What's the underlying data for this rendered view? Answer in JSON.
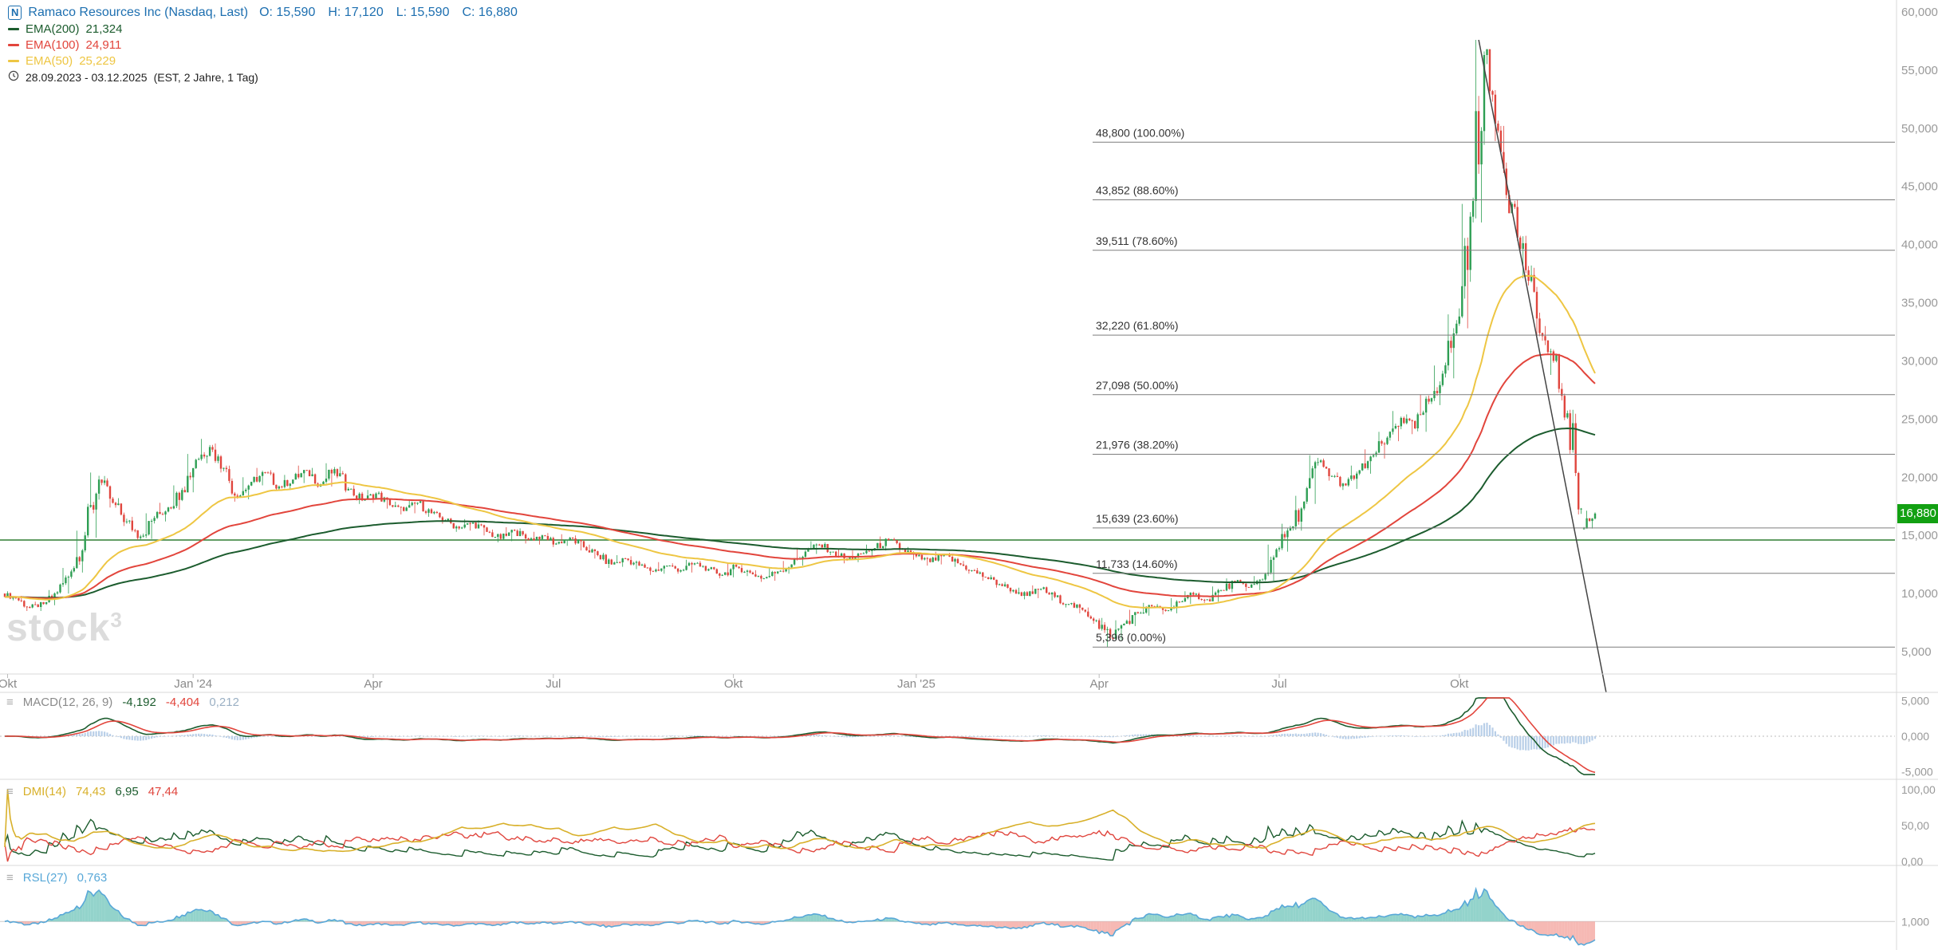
{
  "header": {
    "instrument_icon": "N",
    "instrument": "Ramaco Resources Inc (Nasdaq, Last)",
    "ohlc": {
      "open": "O: 15,590",
      "high": "H: 17,120",
      "low": "L: 15,590",
      "close": "C: 16,880"
    },
    "emas": [
      {
        "period": 200,
        "name": "EMA(200)",
        "value": "21,324",
        "color": "#1c5c2e"
      },
      {
        "period": 100,
        "name": "EMA(100)",
        "value": "24,911",
        "color": "#e2453c"
      },
      {
        "period": 50,
        "name": "EMA(50)",
        "value": "25,229",
        "color": "#eec643"
      }
    ],
    "date_range": "28.09.2023 - 03.12.2025",
    "range_note": "(EST, 2 Jahre, 1 Tag)"
  },
  "watermark": {
    "text": "stock",
    "sup": "3"
  },
  "colors": {
    "up": "#2e9e53",
    "down": "#e0463e",
    "ema200": "#1c5c2e",
    "ema100": "#e2453c",
    "ema50": "#eec643",
    "macd_line": "#1c5c2e",
    "macd_signal": "#e2453c",
    "macd_hist": "#b9cfe8",
    "macd_hist_text": "#9bb0c4",
    "adx": "#d8b02a",
    "plus_di": "#1c5c2e",
    "minus_di": "#e0463e",
    "rsl_line": "#58a8d8",
    "rsl_above": "#6fc4ba",
    "rsl_below": "#f3a19b",
    "badge": "#12a012",
    "support": "#2e7d32",
    "fib": "#7d7d7d",
    "trend": "#444444",
    "instrument": "#1d6fb0",
    "axis_text": "#999999"
  },
  "indicators": {
    "macd": {
      "name": "MACD(12, 26, 9)",
      "macd_value": "-4,192",
      "signal_value": "-4,404",
      "hist_value": "0,212"
    },
    "dmi": {
      "name": "DMI(14)",
      "adx_value": "74,43",
      "plus_di_value": "6,95",
      "minus_di_value": "47,44"
    },
    "rsl": {
      "name": "RSL(27)",
      "value": "0,763"
    }
  },
  "chart_data": {
    "type": "candlestick",
    "title": "Ramaco Resources Inc (Nasdaq, Last)",
    "date_range": "28.09.2023 - 03.12.2025",
    "sampling": "weekly OHLC estimated from the daily chart, axis units = price x 1000",
    "last": {
      "open": 15590,
      "high": 17120,
      "low": 15590,
      "close": 16880
    },
    "last_price": {
      "value": 16880,
      "label": "16,880"
    },
    "price_axis": {
      "min": 5000,
      "max": 60000,
      "ticks": [
        {
          "v": 60000,
          "label": "60,000"
        },
        {
          "v": 55000,
          "label": "55,000"
        },
        {
          "v": 50000,
          "label": "50,000"
        },
        {
          "v": 45000,
          "label": "45,000"
        },
        {
          "v": 40000,
          "label": "40,000"
        },
        {
          "v": 35000,
          "label": "35,000"
        },
        {
          "v": 30000,
          "label": "30,000"
        },
        {
          "v": 25000,
          "label": "25,000"
        },
        {
          "v": 20000,
          "label": "20,000"
        },
        {
          "v": 15000,
          "label": "15,000"
        },
        {
          "v": 10000,
          "label": "10,000"
        },
        {
          "v": 5000,
          "label": "5,000"
        }
      ]
    },
    "x_axis": [
      {
        "label": "Okt",
        "day": 1
      },
      {
        "label": "Jan '24",
        "day": 68
      },
      {
        "label": "Apr",
        "day": 133
      },
      {
        "label": "Jul",
        "day": 198
      },
      {
        "label": "Okt",
        "day": 263
      },
      {
        "label": "Jan '25",
        "day": 329
      },
      {
        "label": "Apr",
        "day": 395
      },
      {
        "label": "Jul",
        "day": 460
      },
      {
        "label": "Okt",
        "day": 525
      }
    ],
    "fib_levels": [
      {
        "value": 48800,
        "label": "48,800 (100.00%)"
      },
      {
        "value": 43852,
        "label": "43,852 (88.60%)"
      },
      {
        "value": 39511,
        "label": "39,511 (78.60%)"
      },
      {
        "value": 32220,
        "label": "32,220 (61.80%)"
      },
      {
        "value": 27098,
        "label": "27,098 (50.00%)"
      },
      {
        "value": 21976,
        "label": "21,976 (38.20%)"
      },
      {
        "value": 15639,
        "label": "15,639 (23.60%)"
      },
      {
        "value": 11733,
        "label": "11,733 (14.60%)"
      },
      {
        "value": 5396,
        "label": "5,396 (0.00%)"
      }
    ],
    "support_line": {
      "value": 14600
    },
    "trendline": {
      "from_day": 532,
      "from_value": 57600,
      "to_day": 578,
      "to_value": 1500
    },
    "emas": [
      {
        "period": 200,
        "value": 21324
      },
      {
        "period": 100,
        "value": 24911
      },
      {
        "period": 50,
        "value": 25229
      }
    ],
    "indicator_axes": {
      "macd": {
        "range": [
          -5500,
          5500
        ],
        "ticks": [
          {
            "v": 5000,
            "label": "5,000"
          },
          {
            "v": 0,
            "label": "0,000"
          },
          {
            "v": -5000,
            "label": "-5,000"
          }
        ]
      },
      "dmi": {
        "range": [
          0,
          102
        ],
        "ticks": [
          {
            "v": 100,
            "label": "100,00"
          },
          {
            "v": 50,
            "label": "50,00"
          },
          {
            "v": 0,
            "label": "0,00"
          }
        ]
      },
      "rsl": {
        "range": [
          0.5,
          2.0
        ],
        "ticks": [
          {
            "v": 1,
            "label": "1,000"
          }
        ]
      }
    },
    "weekly_ohlc": [
      [
        10000,
        10200,
        9400,
        9600
      ],
      [
        9600,
        9800,
        8500,
        8800
      ],
      [
        8800,
        9300,
        8500,
        9100
      ],
      [
        9100,
        10300,
        9000,
        10100
      ],
      [
        10100,
        12200,
        10000,
        11900
      ],
      [
        11900,
        15400,
        11800,
        15000
      ],
      [
        15000,
        20400,
        14800,
        19800
      ],
      [
        19800,
        20100,
        17400,
        17800
      ],
      [
        17800,
        18200,
        15800,
        16200
      ],
      [
        16200,
        16600,
        14600,
        14900
      ],
      [
        14900,
        16900,
        14700,
        16500
      ],
      [
        16500,
        17800,
        16200,
        17400
      ],
      [
        17400,
        19300,
        17200,
        18900
      ],
      [
        18900,
        22000,
        18700,
        21500
      ],
      [
        21500,
        23300,
        21200,
        22600
      ],
      [
        22600,
        22900,
        20400,
        20800
      ],
      [
        20800,
        21000,
        17900,
        18300
      ],
      [
        18300,
        20000,
        18100,
        19600
      ],
      [
        19600,
        20800,
        19300,
        20400
      ],
      [
        20400,
        20600,
        18900,
        19200
      ],
      [
        19200,
        20200,
        18900,
        19800
      ],
      [
        19800,
        21000,
        19500,
        20600
      ],
      [
        20600,
        20800,
        19100,
        19400
      ],
      [
        19400,
        21200,
        19200,
        20700
      ],
      [
        20700,
        20900,
        18700,
        19000
      ],
      [
        19000,
        19300,
        17700,
        18000
      ],
      [
        18000,
        18900,
        17800,
        18600
      ],
      [
        18600,
        18800,
        17300,
        17600
      ],
      [
        17600,
        17900,
        16800,
        17100
      ],
      [
        17100,
        18100,
        16900,
        17800
      ],
      [
        17800,
        18000,
        16600,
        16900
      ],
      [
        16900,
        17100,
        16000,
        16300
      ],
      [
        16300,
        16500,
        15300,
        15600
      ],
      [
        15600,
        16400,
        15400,
        16100
      ],
      [
        16100,
        16300,
        15000,
        15300
      ],
      [
        15300,
        15500,
        14400,
        14700
      ],
      [
        14700,
        15700,
        14500,
        15400
      ],
      [
        15400,
        15600,
        14300,
        14600
      ],
      [
        14600,
        15300,
        14200,
        15000
      ],
      [
        15000,
        15200,
        14000,
        14300
      ],
      [
        14300,
        15100,
        14100,
        14800
      ],
      [
        14800,
        15000,
        13700,
        14000
      ],
      [
        14000,
        14200,
        13000,
        13300
      ],
      [
        13300,
        13500,
        12200,
        12500
      ],
      [
        12500,
        13300,
        12300,
        13000
      ],
      [
        13000,
        13200,
        12100,
        12400
      ],
      [
        12400,
        12600,
        11600,
        11900
      ],
      [
        11900,
        12700,
        11700,
        12400
      ],
      [
        12400,
        12600,
        11700,
        12000
      ],
      [
        12000,
        12900,
        11800,
        12600
      ],
      [
        12600,
        12800,
        11900,
        12100
      ],
      [
        12100,
        12300,
        11300,
        11600
      ],
      [
        11600,
        12600,
        11400,
        12300
      ],
      [
        12300,
        12500,
        11500,
        11800
      ],
      [
        11800,
        12000,
        11000,
        11300
      ],
      [
        11300,
        12200,
        11100,
        11900
      ],
      [
        11900,
        12800,
        11700,
        12500
      ],
      [
        12500,
        13900,
        12400,
        13600
      ],
      [
        13600,
        14500,
        13400,
        14200
      ],
      [
        14200,
        14400,
        13300,
        13600
      ],
      [
        13600,
        13800,
        12600,
        12900
      ],
      [
        12900,
        13700,
        12700,
        13400
      ],
      [
        13400,
        14200,
        13200,
        13900
      ],
      [
        13900,
        14900,
        13700,
        14600
      ],
      [
        14600,
        14800,
        13500,
        13800
      ],
      [
        13800,
        14000,
        12900,
        13200
      ],
      [
        13200,
        13400,
        12400,
        12700
      ],
      [
        12700,
        13600,
        12500,
        13300
      ],
      [
        13300,
        13500,
        12300,
        12600
      ],
      [
        12600,
        12800,
        11700,
        12000
      ],
      [
        12000,
        12200,
        11100,
        11400
      ],
      [
        11400,
        11600,
        10500,
        10800
      ],
      [
        10800,
        11000,
        10000,
        10300
      ],
      [
        10300,
        10500,
        9500,
        9800
      ],
      [
        9800,
        10700,
        9600,
        10400
      ],
      [
        10400,
        10600,
        9400,
        9700
      ],
      [
        9700,
        9900,
        8800,
        9100
      ],
      [
        9100,
        9300,
        8300,
        8600
      ],
      [
        8600,
        8800,
        7400,
        7700
      ],
      [
        7700,
        7900,
        5396,
        6200
      ],
      [
        6200,
        7700,
        6000,
        7400
      ],
      [
        7400,
        8600,
        7200,
        8300
      ],
      [
        8300,
        9200,
        8100,
        8900
      ],
      [
        8900,
        9100,
        8200,
        8500
      ],
      [
        8500,
        9600,
        8300,
        9300
      ],
      [
        9300,
        10200,
        9100,
        9900
      ],
      [
        9900,
        10100,
        9200,
        9500
      ],
      [
        9500,
        10600,
        9300,
        10300
      ],
      [
        10300,
        11300,
        10100,
        11000
      ],
      [
        11000,
        11200,
        10200,
        10500
      ],
      [
        10500,
        11500,
        10300,
        11200
      ],
      [
        11200,
        14200,
        11100,
        13800
      ],
      [
        13800,
        16000,
        13600,
        15600
      ],
      [
        15600,
        18400,
        15400,
        17900
      ],
      [
        17900,
        21900,
        17700,
        21300
      ],
      [
        21300,
        21600,
        19700,
        20100
      ],
      [
        20100,
        20400,
        18900,
        19300
      ],
      [
        19300,
        21000,
        19000,
        20600
      ],
      [
        20600,
        22400,
        20300,
        21900
      ],
      [
        21900,
        23900,
        21600,
        23400
      ],
      [
        23400,
        25700,
        23100,
        25100
      ],
      [
        25100,
        25400,
        23700,
        24200
      ],
      [
        24200,
        27100,
        23900,
        26500
      ],
      [
        26500,
        29600,
        26200,
        28900
      ],
      [
        28900,
        34000,
        28500,
        33200
      ],
      [
        33200,
        43500,
        32800,
        42400
      ],
      [
        42400,
        57600,
        41900,
        56300
      ],
      [
        56300,
        56800,
        48900,
        49800
      ],
      [
        49800,
        50200,
        42700,
        43500
      ],
      [
        43500,
        43900,
        37100,
        37800
      ],
      [
        37800,
        38200,
        31800,
        32400
      ],
      [
        32400,
        33000,
        28800,
        30000
      ],
      [
        30000,
        30600,
        24900,
        25500
      ],
      [
        25500,
        25800,
        16800,
        17300
      ],
      [
        15590,
        17120,
        15590,
        16880
      ]
    ]
  }
}
